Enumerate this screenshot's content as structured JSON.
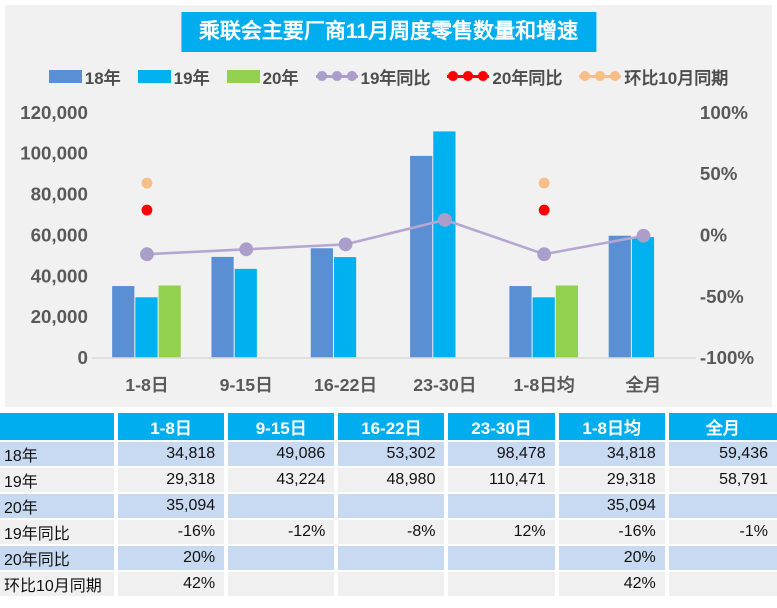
{
  "title": "乘联会主要厂商11月周度零售数量和增速",
  "colors": {
    "accent": "#00AEEF",
    "chart_bg": "#F1F1F1",
    "axis_text": "#595959",
    "row_blue": "#C7DAF2",
    "row_gray": "#F0F0F0"
  },
  "legend": [
    {
      "label": "18年",
      "type": "bar",
      "color": "#5A8FD3"
    },
    {
      "label": "19年",
      "type": "bar",
      "color": "#00B1EF"
    },
    {
      "label": "20年",
      "type": "bar",
      "color": "#92D050"
    },
    {
      "label": "19年同比",
      "type": "line",
      "color": "#AC9ECB"
    },
    {
      "label": "20年同比",
      "type": "line",
      "color": "#FF0000"
    },
    {
      "label": "环比10月同期",
      "type": "line",
      "color": "#F7BE88"
    }
  ],
  "chart_data": {
    "type": "bar+line combo",
    "title": "乘联会主要厂商11月周度零售数量和增速",
    "categories": [
      "1-8日",
      "9-15日",
      "16-22日",
      "23-30日",
      "1-8日均",
      "全月"
    ],
    "bar_series": [
      {
        "name": "18年",
        "color": "#5A8FD3",
        "values": [
          34818,
          49086,
          53302,
          98478,
          34818,
          59436
        ]
      },
      {
        "name": "19年",
        "color": "#00B1EF",
        "values": [
          29318,
          43224,
          48980,
          110471,
          29318,
          58791
        ]
      },
      {
        "name": "20年",
        "color": "#92D050",
        "values": [
          35094,
          null,
          null,
          null,
          35094,
          null
        ]
      }
    ],
    "line_series": [
      {
        "name": "19年同比",
        "color": "#AC9ECB",
        "line_color": "#B5A7D2",
        "draw_line": true,
        "values_pct": [
          -16,
          -12,
          -8,
          12,
          -16,
          -1
        ]
      },
      {
        "name": "20年同比",
        "color": "#FF0000",
        "line_color": "#FF0000",
        "draw_line": false,
        "values_pct": [
          20,
          null,
          null,
          null,
          20,
          null
        ]
      },
      {
        "name": "环比10月同期",
        "color": "#F7BE88",
        "line_color": "#F7BE88",
        "draw_line": false,
        "values_pct": [
          42,
          null,
          null,
          null,
          42,
          null
        ]
      }
    ],
    "left_axis": {
      "min": 0,
      "max": 120000,
      "ticks": [
        "0",
        "20,000",
        "40,000",
        "60,000",
        "80,000",
        "100,000",
        "120,000"
      ]
    },
    "right_axis": {
      "min": -100,
      "max": 100,
      "ticks": [
        "-100%",
        "-50%",
        "0%",
        "50%",
        "100%"
      ]
    },
    "grid": "off",
    "legend_position": "top"
  },
  "table": {
    "header": [
      "",
      "1-8日",
      "9-15日",
      "16-22日",
      "23-30日",
      "1-8日均",
      "全月"
    ],
    "rows": [
      {
        "label": "18年",
        "cells": [
          "34,818",
          "49,086",
          "53,302",
          "98,478",
          "34,818",
          "59,436"
        ]
      },
      {
        "label": "19年",
        "cells": [
          "29,318",
          "43,224",
          "48,980",
          "110,471",
          "29,318",
          "58,791"
        ]
      },
      {
        "label": "20年",
        "cells": [
          "35,094",
          "",
          "",
          "",
          "35,094",
          ""
        ]
      },
      {
        "label": "19年同比",
        "cells": [
          "-16%",
          "-12%",
          "-8%",
          "12%",
          "-16%",
          "-1%"
        ]
      },
      {
        "label": "20年同比",
        "cells": [
          "20%",
          "",
          "",
          "",
          "20%",
          ""
        ]
      },
      {
        "label": "环比10月同期",
        "cells": [
          "42%",
          "",
          "",
          "",
          "42%",
          ""
        ]
      }
    ]
  }
}
